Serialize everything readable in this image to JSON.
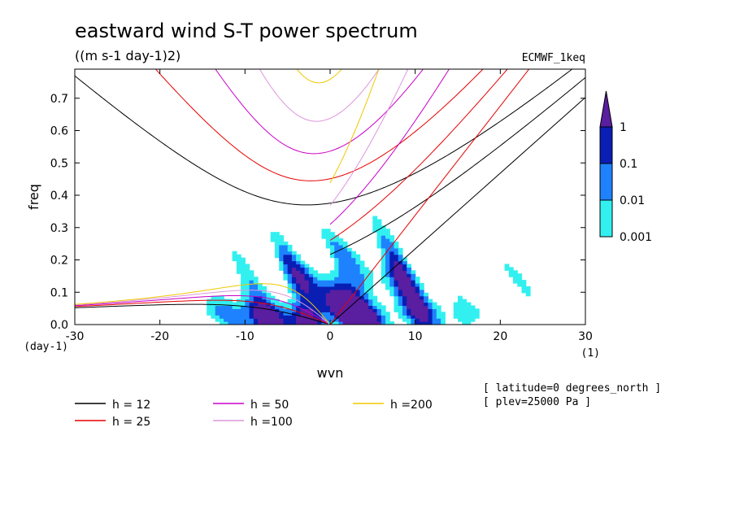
{
  "chart_data": {
    "type": "heatmap",
    "title": "eastward wind S-T power spectrum",
    "subtitle": "((m s-1 day-1)2)",
    "dataset_label": "ECMWF_1keq",
    "xlabel": "wvn",
    "ylabel": "freq",
    "x_unit": "(1)",
    "y_unit": "(day-1)",
    "xlim": [
      -30,
      30
    ],
    "ylim": [
      0,
      0.79
    ],
    "x_ticks": [
      -30,
      -20,
      -10,
      0,
      10,
      20,
      30
    ],
    "x_tick_labels": [
      "-30",
      "-20",
      "-10",
      "0",
      "10",
      "20",
      "30"
    ],
    "y_ticks": [
      0,
      0.1,
      0.2,
      0.3,
      0.4,
      0.5,
      0.6,
      0.7
    ],
    "y_tick_labels": [
      "0.0",
      "0.1",
      "0.2",
      "0.3",
      "0.4",
      "0.5",
      "0.6",
      "0.7"
    ],
    "colorbar": {
      "levels": [
        "0.001",
        "0.01",
        "0.1",
        "1"
      ],
      "colors": [
        "#33f0f0",
        "#1e82ff",
        "#0a1eb4",
        "#5a1ea0"
      ]
    },
    "series": [
      {
        "name": "h = 12",
        "h": 12,
        "color": "#000000"
      },
      {
        "name": "h = 25",
        "h": 25,
        "color": "#e60000"
      },
      {
        "name": "h = 50",
        "h": 50,
        "color": "#c800c8"
      },
      {
        "name": "h =100",
        "h": 100,
        "color": "#dc96dc"
      },
      {
        "name": "h =200",
        "h": 200,
        "color": "#f0c800"
      }
    ],
    "annotations": [
      "[ latitude=0 degrees_north ]",
      "[ plev=25000 Pa ]"
    ],
    "grid": false,
    "legend_placement": "bottom-left"
  }
}
